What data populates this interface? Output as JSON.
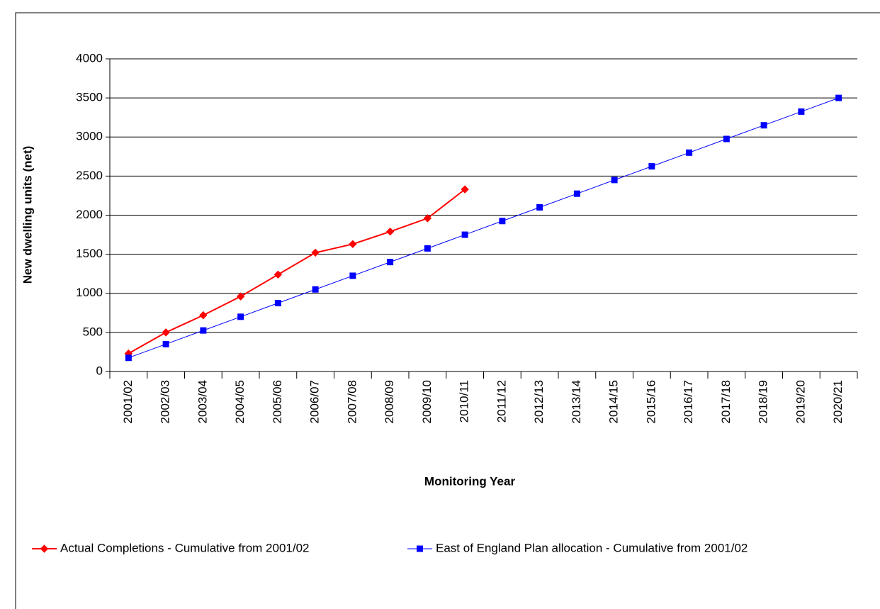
{
  "chart_data": {
    "type": "line",
    "x_label": "Monitoring Year",
    "y_label": "New dwelling units (net)",
    "categories": [
      "2001/02",
      "2002/03",
      "2003/04",
      "2004/05",
      "2005/06",
      "2006/07",
      "2007/08",
      "2008/09",
      "2009/10",
      "2010/11",
      "2011/12",
      "2012/13",
      "2013/14",
      "2014/15",
      "2015/16",
      "2016/17",
      "2017/18",
      "2018/19",
      "2019/20",
      "2020/21"
    ],
    "series": [
      {
        "name": "Actual Completions - Cumulative from 2001/02",
        "color": "#ff0000",
        "marker": "diamond",
        "values": [
          230,
          500,
          720,
          960,
          1240,
          1520,
          1630,
          1790,
          1960,
          2330,
          null,
          null,
          null,
          null,
          null,
          null,
          null,
          null,
          null,
          null
        ]
      },
      {
        "name": "East of England Plan allocation - Cumulative from 2001/02",
        "color": "#0000ff",
        "marker": "square",
        "values": [
          175,
          350,
          525,
          700,
          875,
          1050,
          1225,
          1400,
          1575,
          1750,
          1925,
          2100,
          2275,
          2450,
          2625,
          2800,
          2975,
          3150,
          3325,
          3500
        ]
      }
    ],
    "ylim": [
      0,
      4000
    ],
    "yticks": [
      0,
      500,
      1000,
      1500,
      2000,
      2500,
      3000,
      3500,
      4000
    ],
    "grid": true,
    "legend": "bottom"
  }
}
